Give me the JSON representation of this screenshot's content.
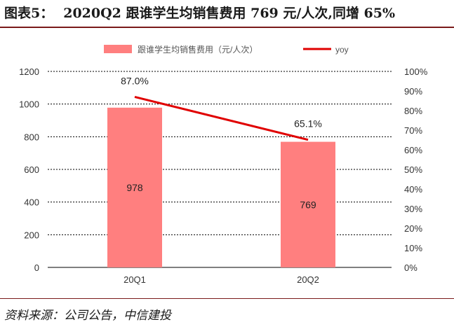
{
  "header": {
    "figure_label": "图表5：",
    "title": "2020Q2 跟谁学生均销售费用 769 元/人次,同增 65%"
  },
  "source": "资料来源：公司公告，中信建投",
  "chart_data": {
    "type": "bar",
    "categories": [
      "20Q1",
      "20Q2"
    ],
    "series": [
      {
        "name": "跟谁学生均销售费用（元/人次）",
        "kind": "bar",
        "axis": "left",
        "values": [
          978,
          769
        ],
        "labels": [
          "978",
          "769"
        ],
        "color": "#ff7f7f"
      },
      {
        "name": "yoy",
        "kind": "line",
        "axis": "right",
        "values": [
          87.0,
          65.1
        ],
        "labels": [
          "87.0%",
          "65.1%"
        ],
        "color": "#e00000"
      }
    ],
    "y_left": {
      "min": 0,
      "max": 1200,
      "ticks": [
        "0",
        "200",
        "400",
        "600",
        "800",
        "1000",
        "1200"
      ]
    },
    "y_right": {
      "min": 0,
      "max": 100,
      "ticks": [
        "0%",
        "10%",
        "20%",
        "30%",
        "40%",
        "50%",
        "60%",
        "70%",
        "80%",
        "90%",
        "100%"
      ]
    },
    "grid": "dashed horizontal",
    "legend": "top-center"
  }
}
